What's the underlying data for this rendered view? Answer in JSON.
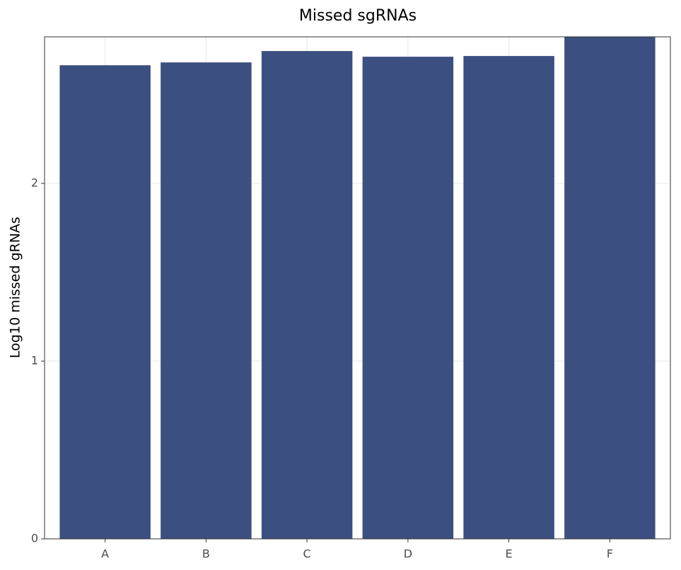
{
  "chart_data": {
    "type": "bar",
    "title": "Missed sgRNAs",
    "y_label": "Log10 missed gRNAs",
    "categories": [
      "A",
      "B",
      "C",
      "D",
      "E",
      "F"
    ],
    "values": [
      2.665,
      2.681,
      2.745,
      2.713,
      2.717,
      2.825
    ],
    "color": "#3b4f80",
    "ylim": [
      0,
      2.825
    ],
    "yticks": [
      0,
      1,
      2
    ],
    "grid": true
  }
}
